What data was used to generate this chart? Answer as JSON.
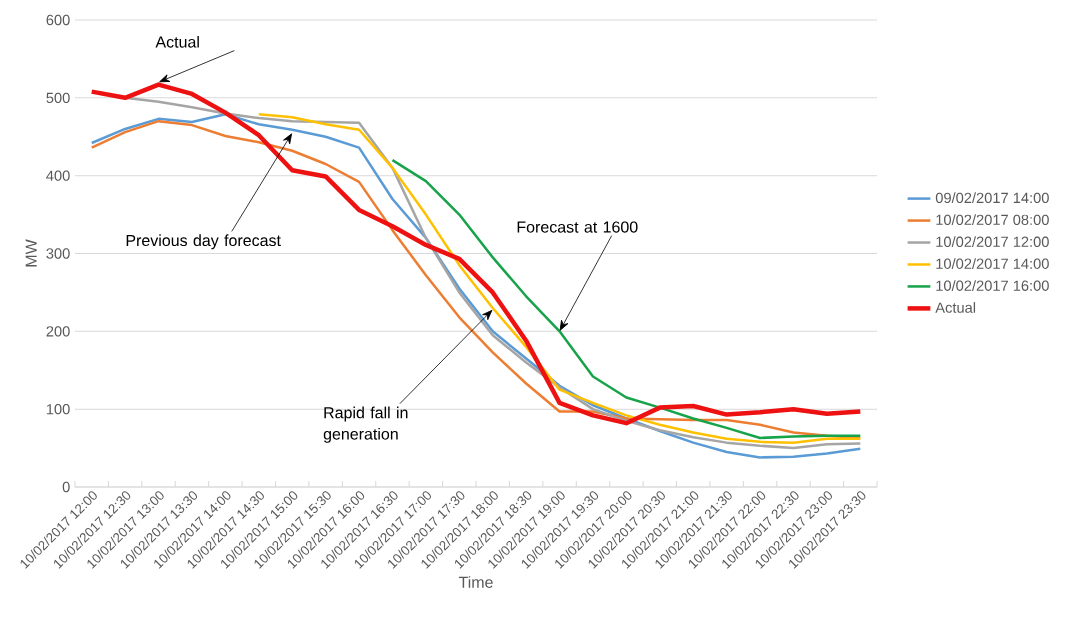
{
  "chart_data": {
    "type": "line",
    "xlabel": "Time",
    "ylabel": "MW",
    "categories": [
      "10/02/2017 12:00",
      "10/02/2017 12:30",
      "10/02/2017 13:00",
      "10/02/2017 13:30",
      "10/02/2017 14:00",
      "10/02/2017 14:30",
      "10/02/2017 15:00",
      "10/02/2017 15:30",
      "10/02/2017 16:00",
      "10/02/2017 16:30",
      "10/02/2017 17:00",
      "10/02/2017 17:30",
      "10/02/2017 18:00",
      "10/02/2017 18:30",
      "10/02/2017 19:00",
      "10/02/2017 19:30",
      "10/02/2017 20:00",
      "10/02/2017 20:30",
      "10/02/2017 21:00",
      "10/02/2017 21:30",
      "10/02/2017 22:00",
      "10/02/2017 22:30",
      "10/02/2017 23:00",
      "10/02/2017 23:30"
    ],
    "series": [
      {
        "name": "09/02/2017 14:00",
        "color": "#5b9bd5",
        "values": [
          442,
          460,
          473,
          469,
          479,
          466,
          459,
          450,
          436,
          370,
          320,
          255,
          200,
          165,
          130,
          105,
          88,
          72,
          57,
          45,
          38,
          39,
          43,
          49
        ]
      },
      {
        "name": "10/02/2017 08:00",
        "color": "#ed7d31",
        "values": [
          436,
          456,
          470,
          465,
          451,
          443,
          432,
          415,
          392,
          330,
          272,
          218,
          173,
          133,
          97,
          97,
          88,
          87,
          86,
          86,
          80,
          70,
          66,
          63
        ]
      },
      {
        "name": "10/02/2017 12:00",
        "color": "#a5a5a5",
        "values": [
          null,
          500,
          495,
          488,
          480,
          474,
          470,
          469,
          468,
          410,
          320,
          250,
          195,
          160,
          128,
          100,
          85,
          73,
          64,
          57,
          53,
          50,
          55,
          56
        ]
      },
      {
        "name": "10/02/2017 14:00",
        "color": "#ffc000",
        "values": [
          null,
          null,
          null,
          null,
          null,
          479,
          475,
          466,
          459,
          410,
          350,
          285,
          230,
          180,
          125,
          108,
          92,
          80,
          70,
          62,
          58,
          57,
          62,
          62
        ]
      },
      {
        "name": "10/02/2017 16:00",
        "color": "#17a34a",
        "values": [
          null,
          null,
          null,
          null,
          null,
          null,
          null,
          null,
          null,
          420,
          393,
          350,
          295,
          245,
          200,
          142,
          115,
          102,
          88,
          76,
          63,
          65,
          66,
          66
        ]
      },
      {
        "name": "Actual",
        "color": "#ee1111",
        "values": [
          508,
          500,
          517,
          505,
          481,
          452,
          407,
          399,
          356,
          335,
          311,
          293,
          250,
          188,
          108,
          92,
          82,
          102,
          104,
          93,
          96,
          100,
          94,
          97
        ]
      }
    ],
    "ylim": [
      0,
      600
    ],
    "yticks": [
      0,
      100,
      200,
      300,
      400,
      500,
      600
    ],
    "grid": "y",
    "legend": "right",
    "annotations": [
      {
        "text": "Actual",
        "x": "10/02/2017 13:00",
        "y": 520
      },
      {
        "text": "Previous day forecast",
        "x": "10/02/2017 15:00",
        "y": 455
      },
      {
        "text": "Forecast at 1600",
        "x": "10/02/2017 19:00",
        "y": 200
      },
      {
        "text": "Rapid fall in generation",
        "x": "10/02/2017 18:00",
        "y": 228
      }
    ]
  }
}
